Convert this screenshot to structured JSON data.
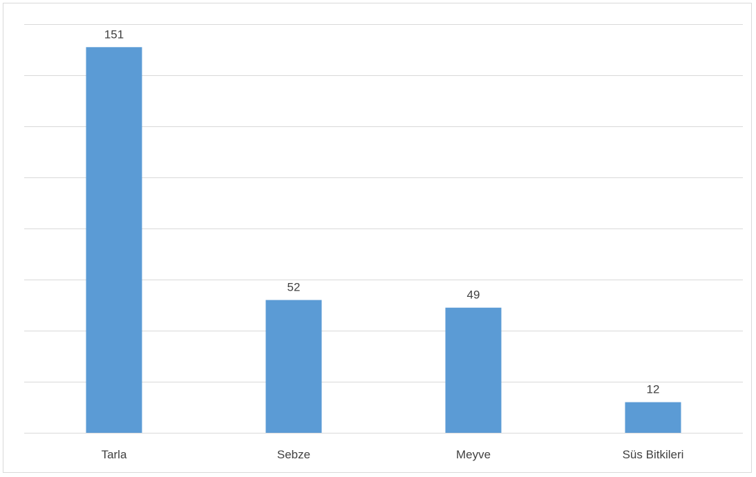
{
  "chart_data": {
    "type": "bar",
    "categories": [
      "Tarla",
      "Sebze",
      "Meyve",
      "Süs Bitkileri"
    ],
    "values": [
      151,
      52,
      49,
      12
    ],
    "data_labels": [
      "151",
      "52",
      "49",
      "12"
    ],
    "title": "",
    "xlabel": "",
    "ylabel": "",
    "ylim": [
      0,
      160
    ],
    "gridlines": [
      0,
      20,
      40,
      60,
      80,
      100,
      120,
      140,
      160
    ],
    "grid": true,
    "legend": "none",
    "colors": {
      "bar": "#5b9bd5",
      "grid": "#d9d9d9",
      "text": "#404040"
    }
  }
}
